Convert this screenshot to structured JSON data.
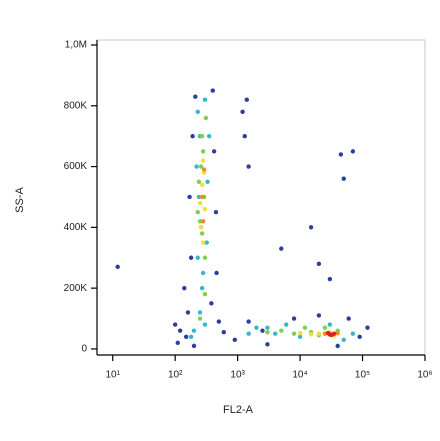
{
  "chart_data": {
    "type": "scatter",
    "x_label": "FL2-A",
    "y_label": "SS-A",
    "x_log": true,
    "xlim": [
      5.6,
      1000000
    ],
    "xticks": [
      {
        "value": 10,
        "label": "10¹"
      },
      {
        "value": 100,
        "label": "10²"
      },
      {
        "value": 1000,
        "label": "10³"
      },
      {
        "value": 10000,
        "label": "10⁴"
      },
      {
        "value": 100000,
        "label": "10⁵"
      },
      {
        "value": 1000000,
        "label": "10⁶"
      }
    ],
    "ylim": [
      -20000,
      1000000
    ],
    "yticks": [
      0,
      {
        "value": 200000,
        "label": "200K"
      },
      {
        "value": 400000,
        "label": "400K"
      },
      {
        "value": 600000,
        "label": "600K"
      },
      {
        "value": 800000,
        "label": "800K"
      },
      {
        "value": 1000000,
        "label": "1,0M"
      }
    ],
    "series": [
      {
        "color": "#2b3fa0",
        "x": [
          120,
          150,
          160,
          180,
          170,
          190,
          210,
          400,
          420,
          450,
          460,
          380,
          140,
          500,
          1500,
          3000,
          8000,
          20000,
          60000,
          90000,
          120000,
          900,
          2500,
          40000,
          1200,
          1400,
          1300,
          1500,
          30000,
          50000,
          70000,
          5000,
          20000,
          12,
          15000,
          100,
          110,
          600,
          200,
          45000
        ],
        "values": [
          60000,
          40000,
          120000,
          300000,
          500000,
          700000,
          830000,
          850000,
          650000,
          450000,
          250000,
          150000,
          200000,
          90000,
          90000,
          15000,
          100000,
          110000,
          100000,
          40000,
          70000,
          30000,
          60000,
          10000,
          780000,
          820000,
          700000,
          600000,
          230000,
          560000,
          650000,
          330000,
          280000,
          270000,
          400000,
          80000,
          20000,
          55000,
          10000,
          640000
        ]
      },
      {
        "color": "#35b8c8",
        "x": [
          230,
          250,
          220,
          240,
          260,
          230,
          270,
          250,
          300,
          200,
          350,
          330,
          320,
          2000,
          4000,
          6000,
          10000,
          30000,
          70000,
          1500,
          300,
          280,
          180,
          3000,
          50000
        ],
        "values": [
          780000,
          700000,
          600000,
          500000,
          400000,
          300000,
          200000,
          120000,
          80000,
          60000,
          700000,
          550000,
          350000,
          70000,
          50000,
          80000,
          40000,
          80000,
          50000,
          50000,
          820000,
          250000,
          40000,
          70000,
          30000
        ]
      },
      {
        "color": "#7ed04b",
        "x": [
          270,
          260,
          290,
          250,
          300,
          280,
          240,
          300,
          5000,
          8000,
          15000,
          20000,
          12000,
          250,
          3000,
          40000,
          270,
          310,
          230,
          25000
        ],
        "values": [
          700000,
          600000,
          500000,
          420000,
          300000,
          650000,
          550000,
          180000,
          60000,
          50000,
          55000,
          45000,
          70000,
          100000,
          55000,
          60000,
          380000,
          760000,
          450000,
          70000
        ]
      },
      {
        "color": "#f2e03a",
        "x": [
          280,
          270,
          300,
          260,
          290,
          280,
          20000,
          30000,
          15000,
          10000,
          250,
          35000
        ],
        "values": [
          620000,
          540000,
          460000,
          400000,
          580000,
          350000,
          50000,
          55000,
          48000,
          52000,
          480000,
          45000
        ]
      },
      {
        "color": "#f58a22",
        "x": [
          290,
          270,
          25000,
          40000,
          30000,
          280
        ],
        "values": [
          590000,
          500000,
          50000,
          52000,
          47000,
          420000
        ]
      },
      {
        "color": "#e02020",
        "x": [
          30000,
          35000,
          28000,
          32000
        ],
        "values": [
          48000,
          50000,
          52000,
          46000
        ]
      }
    ]
  }
}
